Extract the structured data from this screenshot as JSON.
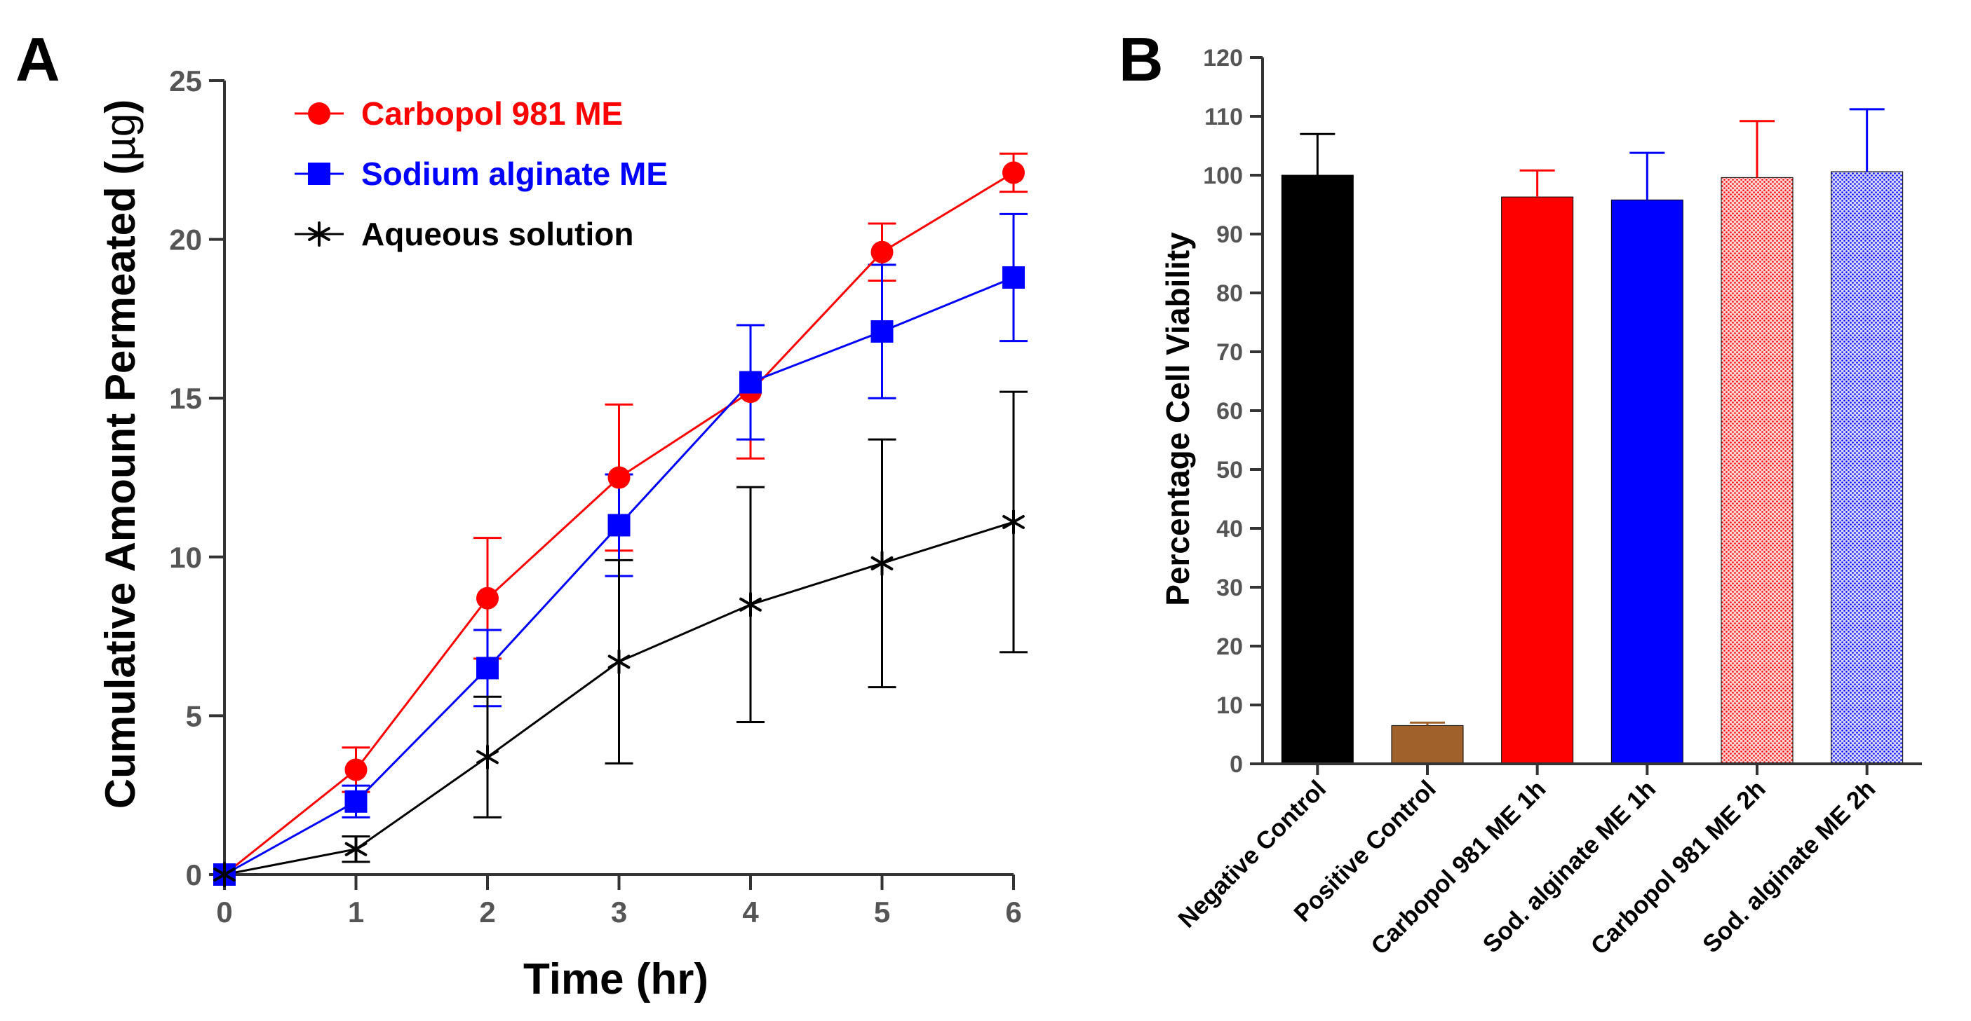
{
  "panels": {
    "a_label": "A",
    "b_label": "B"
  },
  "chart_data": [
    {
      "type": "line",
      "panel": "A",
      "title": "",
      "xlabel": "Time (hr)",
      "ylabel_prefix": "Cumulative Amount Permeated (",
      "ylabel_unit": "µg",
      "ylabel_suffix": ")",
      "xlim": [
        0,
        6
      ],
      "ylim": [
        0,
        25
      ],
      "xticks": [
        0,
        1,
        2,
        3,
        4,
        5,
        6
      ],
      "yticks": [
        0,
        5,
        10,
        15,
        20,
        25
      ],
      "grid": false,
      "legend_position": "top-left",
      "x": [
        0,
        1,
        2,
        3,
        4,
        5,
        6
      ],
      "series": [
        {
          "name": "Carbopol 981 ME",
          "color": "#ff0000",
          "marker": "circle",
          "values": [
            0,
            3.3,
            8.7,
            12.5,
            15.2,
            19.6,
            22.1
          ],
          "errors": [
            0,
            0.7,
            1.9,
            2.3,
            2.1,
            0.9,
            0.6
          ]
        },
        {
          "name": "Sodium alginate ME",
          "color": "#0000ff",
          "marker": "square",
          "values": [
            0,
            2.3,
            6.5,
            11.0,
            15.5,
            17.1,
            18.8
          ],
          "errors": [
            0,
            0.5,
            1.2,
            1.6,
            1.8,
            2.1,
            2.0
          ]
        },
        {
          "name": "Aqueous solution",
          "color": "#000000",
          "marker": "asterisk",
          "values": [
            0,
            0.8,
            3.7,
            6.7,
            8.5,
            9.8,
            11.1
          ],
          "errors": [
            0,
            0.4,
            1.9,
            3.2,
            3.7,
            3.9,
            4.1
          ]
        }
      ]
    },
    {
      "type": "bar",
      "panel": "B",
      "title": "",
      "xlabel": "",
      "ylabel": "Percentage Cell Viability",
      "ylim": [
        0,
        120
      ],
      "yticks": [
        0,
        10,
        20,
        30,
        40,
        50,
        60,
        70,
        80,
        90,
        100,
        110,
        120
      ],
      "grid": false,
      "categories": [
        "Negative Control",
        "Positive Control",
        "Carbopol 981 ME 1h",
        "Sod. alginate ME 1h",
        "Carbopol 981 ME 2h",
        "Sod. alginate ME 2h"
      ],
      "values": [
        100,
        6.5,
        96.3,
        95.8,
        99.6,
        100.6
      ],
      "errors": [
        7,
        0.5,
        4.5,
        8,
        9.6,
        10.6
      ],
      "colors": [
        "#000000",
        "#a0612b",
        "#ff0000",
        "#0000ff",
        "#ff0000",
        "#0000ff"
      ],
      "patterns": [
        "solid",
        "solid",
        "solid",
        "solid",
        "dotted",
        "dotted"
      ]
    }
  ]
}
